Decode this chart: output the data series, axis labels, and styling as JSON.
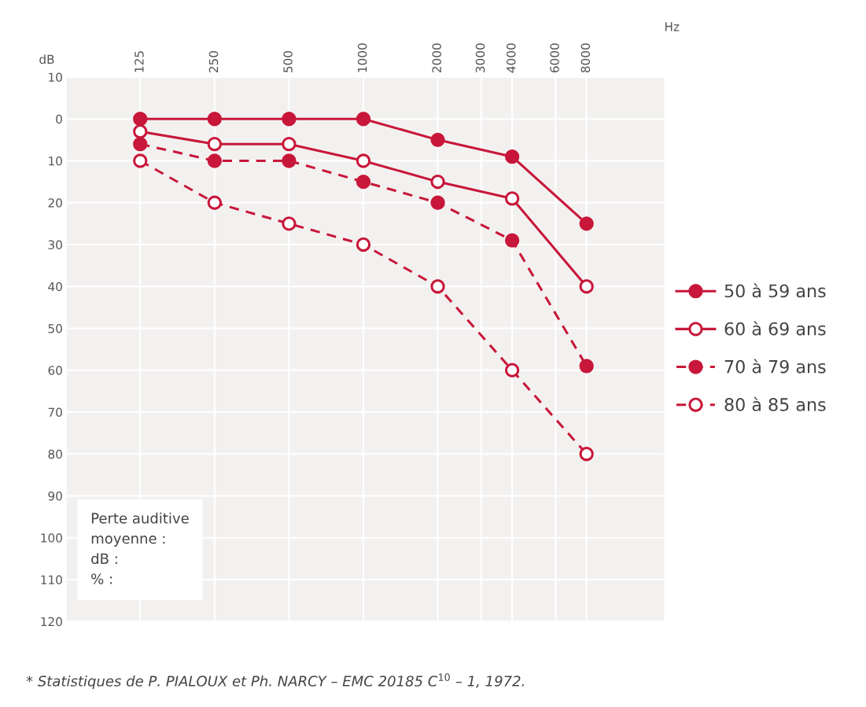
{
  "chart_data": {
    "type": "line",
    "xlabel": "Hz",
    "ylabel": "dB",
    "log": "x",
    "x": [
      125,
      250,
      500,
      1000,
      2000,
      4000,
      8000
    ],
    "xlim": [
      63,
      16500
    ],
    "xticks": [
      125,
      250,
      500,
      1000,
      2000,
      3000,
      4000,
      6000,
      8000
    ],
    "ylim": [
      120,
      -10
    ],
    "yticks": [
      {
        "value": -10,
        "label": "10"
      },
      0,
      10,
      20,
      30,
      40,
      50,
      60,
      70,
      80,
      90,
      100,
      110,
      120
    ],
    "grid": true,
    "legend": "right",
    "series": [
      {
        "name": "50 à 59 ans",
        "color": "#c8173a",
        "line_style": "solid",
        "marker": "circle",
        "values": [
          0,
          0,
          0,
          0,
          5,
          9,
          25
        ]
      },
      {
        "name": "60 à 69 ans",
        "color": "#c8173a",
        "line_style": "solid",
        "marker": "open circle",
        "values": [
          3,
          6,
          6,
          10,
          15,
          19,
          40
        ]
      },
      {
        "name": "70 à 79 ans",
        "color": "#c8173a",
        "line_style": "dashed",
        "marker": "circle",
        "values": [
          6,
          10,
          10,
          15,
          20,
          29,
          59
        ]
      },
      {
        "name": "80 à 85 ans",
        "color": "#c8173a",
        "line_style": "dashed",
        "marker": "open circle",
        "values": [
          10,
          20,
          25,
          30,
          40,
          60,
          80
        ]
      }
    ],
    "annotations": [
      "Perte auditive\nmoyenne :\ndB :\n% :",
      "* Statistiques de P. PIALOUX et Ph. NARCY – EMC 20185 C$^{10}$ – 1, 1972."
    ]
  }
}
